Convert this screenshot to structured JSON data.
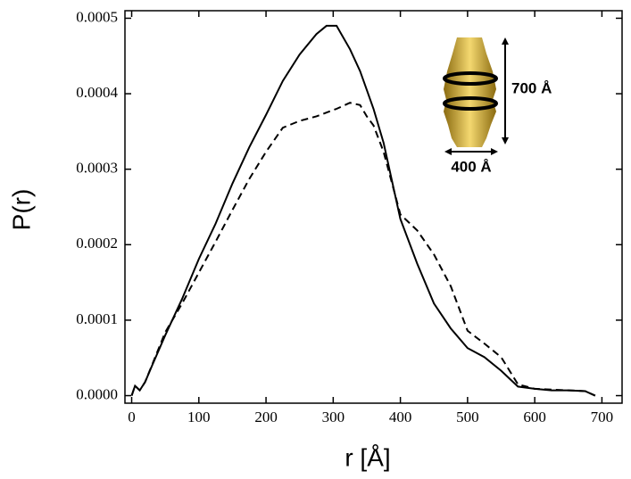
{
  "chart_data": {
    "type": "line",
    "xlabel": "r [Å]",
    "ylabel": "P(r)",
    "annotations": [
      "700 Å",
      "400 Å"
    ],
    "x": [
      0,
      5,
      12,
      20,
      30,
      50,
      75,
      100,
      125,
      150,
      175,
      200,
      225,
      250,
      275,
      290,
      305,
      325,
      340,
      350,
      360,
      375,
      400,
      425,
      450,
      475,
      500,
      525,
      550,
      575,
      600,
      625,
      650,
      675,
      690
    ],
    "series": [
      {
        "color": "#000000",
        "linestyle": "solid",
        "values": [
          0,
          1.3e-05,
          7e-06,
          1.8e-05,
          3.9e-05,
          8e-05,
          0.000128,
          0.000181,
          0.000228,
          0.000281,
          0.000329,
          0.000372,
          0.000417,
          0.000452,
          0.000479,
          0.00049,
          0.00049,
          0.000459,
          0.00043,
          0.000405,
          0.00038,
          0.000335,
          0.000234,
          0.000175,
          0.000122,
          8.9e-05,
          6.3e-05,
          5.1e-05,
          3.3e-05,
          1.2e-05,
          9e-06,
          7e-06,
          7e-06,
          6e-06,
          0
        ]
      },
      {
        "color": "#000000",
        "linestyle": "dashed",
        "values": [
          0,
          1.3e-05,
          7e-06,
          1.8e-05,
          4e-05,
          8.4e-05,
          0.000122,
          0.000163,
          0.000204,
          0.000246,
          0.000287,
          0.000323,
          0.000355,
          0.000364,
          0.00037,
          0.000375,
          0.00038,
          0.000388,
          0.000385,
          0.00037,
          0.000358,
          0.000323,
          0.00024,
          0.000219,
          0.000187,
          0.000145,
          8.6e-05,
          6.9e-05,
          5.1e-05,
          1.5e-05,
          9e-06,
          8e-06,
          7e-06,
          6e-06,
          0
        ]
      }
    ],
    "xlim": [
      -10,
      730
    ],
    "ylim": [
      -1e-05,
      0.00051
    ],
    "xticks": [
      0,
      100,
      200,
      300,
      400,
      500,
      600,
      700
    ],
    "yticks": [
      {
        "value": 0,
        "label": "0.0000"
      },
      0.0001,
      0.0002,
      0.0003,
      0.0004,
      0.0005
    ],
    "grid": false
  }
}
